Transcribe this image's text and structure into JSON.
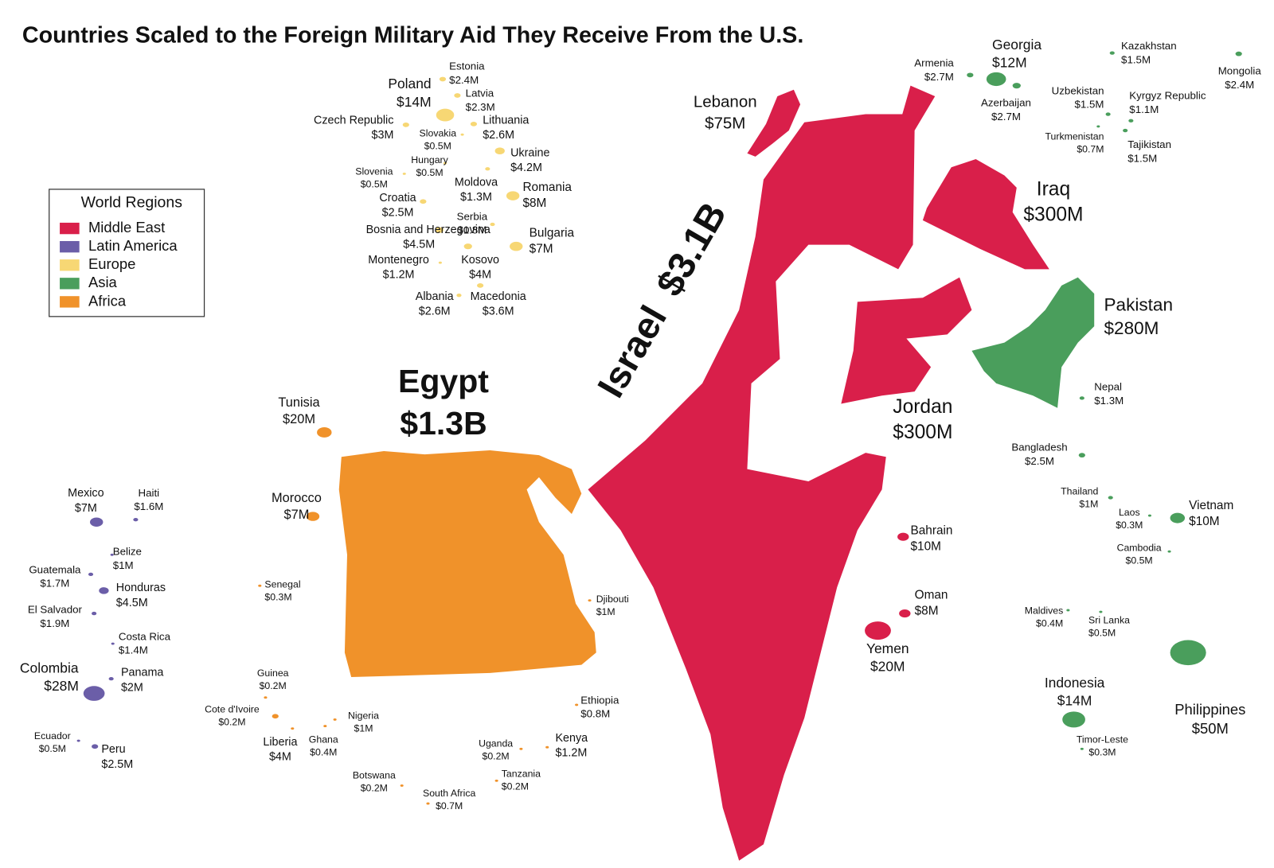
{
  "title": "Countries Scaled to the Foreign Military Aid They Receive From the U.S.",
  "legend": {
    "title": "World Regions",
    "items": [
      {
        "name": "Middle East",
        "color": "#d91f4a"
      },
      {
        "name": "Latin America",
        "color": "#6b5ea8"
      },
      {
        "name": "Europe",
        "color": "#f7d774"
      },
      {
        "name": "Asia",
        "color": "#4a9e5c"
      },
      {
        "name": "Africa",
        "color": "#f0922a"
      }
    ]
  },
  "countries": [
    {
      "name": "Israel",
      "aid": "$3.1B",
      "region": "Middle East"
    },
    {
      "name": "Egypt",
      "aid": "$1.3B",
      "region": "Africa"
    },
    {
      "name": "Lebanon",
      "aid": "$75M",
      "region": "Middle East"
    },
    {
      "name": "Iraq",
      "aid": "$300M",
      "region": "Middle East"
    },
    {
      "name": "Jordan",
      "aid": "$300M",
      "region": "Middle East"
    },
    {
      "name": "Pakistan",
      "aid": "$280M",
      "region": "Asia"
    },
    {
      "name": "Bahrain",
      "aid": "$10M",
      "region": "Middle East"
    },
    {
      "name": "Oman",
      "aid": "$8M",
      "region": "Middle East"
    },
    {
      "name": "Yemen",
      "aid": "$20M",
      "region": "Middle East"
    },
    {
      "name": "Armenia",
      "aid": "$2.7M",
      "region": "Asia"
    },
    {
      "name": "Georgia",
      "aid": "$12M",
      "region": "Asia"
    },
    {
      "name": "Azerbaijan",
      "aid": "$2.7M",
      "region": "Asia"
    },
    {
      "name": "Kazakhstan",
      "aid": "$1.5M",
      "region": "Asia"
    },
    {
      "name": "Mongolia",
      "aid": "$2.4M",
      "region": "Asia"
    },
    {
      "name": "Uzbekistan",
      "aid": "$1.5M",
      "region": "Asia"
    },
    {
      "name": "Kyrgyz Republic",
      "aid": "$1.1M",
      "region": "Asia"
    },
    {
      "name": "Turkmenistan",
      "aid": "$0.7M",
      "region": "Asia"
    },
    {
      "name": "Tajikistan",
      "aid": "$1.5M",
      "region": "Asia"
    },
    {
      "name": "Nepal",
      "aid": "$1.3M",
      "region": "Asia"
    },
    {
      "name": "Bangladesh",
      "aid": "$2.5M",
      "region": "Asia"
    },
    {
      "name": "Thailand",
      "aid": "$1M",
      "region": "Asia"
    },
    {
      "name": "Laos",
      "aid": "$0.3M",
      "region": "Asia"
    },
    {
      "name": "Vietnam",
      "aid": "$10M",
      "region": "Asia"
    },
    {
      "name": "Cambodia",
      "aid": "$0.5M",
      "region": "Asia"
    },
    {
      "name": "Maldives",
      "aid": "$0.4M",
      "region": "Asia"
    },
    {
      "name": "Sri Lanka",
      "aid": "$0.5M",
      "region": "Asia"
    },
    {
      "name": "Philippines",
      "aid": "$50M",
      "region": "Asia"
    },
    {
      "name": "Indonesia",
      "aid": "$14M",
      "region": "Asia"
    },
    {
      "name": "Timor-Leste",
      "aid": "$0.3M",
      "region": "Asia"
    },
    {
      "name": "Estonia",
      "aid": "$2.4M",
      "region": "Europe"
    },
    {
      "name": "Poland",
      "aid": "$14M",
      "region": "Europe"
    },
    {
      "name": "Latvia",
      "aid": "$2.3M",
      "region": "Europe"
    },
    {
      "name": "Czech Republic",
      "aid": "$3M",
      "region": "Europe"
    },
    {
      "name": "Lithuania",
      "aid": "$2.6M",
      "region": "Europe"
    },
    {
      "name": "Slovakia",
      "aid": "$0.5M",
      "region": "Europe"
    },
    {
      "name": "Ukraine",
      "aid": "$4.2M",
      "region": "Europe"
    },
    {
      "name": "Hungary",
      "aid": "$0.5M",
      "region": "Europe"
    },
    {
      "name": "Slovenia",
      "aid": "$0.5M",
      "region": "Europe"
    },
    {
      "name": "Moldova",
      "aid": "$1.3M",
      "region": "Europe"
    },
    {
      "name": "Romania",
      "aid": "$8M",
      "region": "Europe"
    },
    {
      "name": "Croatia",
      "aid": "$2.5M",
      "region": "Europe"
    },
    {
      "name": "Serbia",
      "aid": "$1.8M",
      "region": "Europe"
    },
    {
      "name": "Bosnia and Herzegovina",
      "aid": "$4.5M",
      "region": "Europe"
    },
    {
      "name": "Bulgaria",
      "aid": "$7M",
      "region": "Europe"
    },
    {
      "name": "Montenegro",
      "aid": "$1.2M",
      "region": "Europe"
    },
    {
      "name": "Kosovo",
      "aid": "$4M",
      "region": "Europe"
    },
    {
      "name": "Albania",
      "aid": "$2.6M",
      "region": "Europe"
    },
    {
      "name": "Macedonia",
      "aid": "$3.6M",
      "region": "Europe"
    },
    {
      "name": "Tunisia",
      "aid": "$20M",
      "region": "Africa"
    },
    {
      "name": "Morocco",
      "aid": "$7M",
      "region": "Africa"
    },
    {
      "name": "Senegal",
      "aid": "$0.3M",
      "region": "Africa"
    },
    {
      "name": "Djibouti",
      "aid": "$1M",
      "region": "Africa"
    },
    {
      "name": "Guinea",
      "aid": "$0.2M",
      "region": "Africa"
    },
    {
      "name": "Cote d'Ivoire",
      "aid": "$0.2M",
      "region": "Africa"
    },
    {
      "name": "Nigeria",
      "aid": "$1M",
      "region": "Africa"
    },
    {
      "name": "Liberia",
      "aid": "$4M",
      "region": "Africa"
    },
    {
      "name": "Ghana",
      "aid": "$0.4M",
      "region": "Africa"
    },
    {
      "name": "Ethiopia",
      "aid": "$0.8M",
      "region": "Africa"
    },
    {
      "name": "Kenya",
      "aid": "$1.2M",
      "region": "Africa"
    },
    {
      "name": "Uganda",
      "aid": "$0.2M",
      "region": "Africa"
    },
    {
      "name": "Tanzania",
      "aid": "$0.2M",
      "region": "Africa"
    },
    {
      "name": "Botswana",
      "aid": "$0.2M",
      "region": "Africa"
    },
    {
      "name": "South Africa",
      "aid": "$0.7M",
      "region": "Africa"
    },
    {
      "name": "Mexico",
      "aid": "$7M",
      "region": "Latin America"
    },
    {
      "name": "Haiti",
      "aid": "$1.6M",
      "region": "Latin America"
    },
    {
      "name": "Belize",
      "aid": "$1M",
      "region": "Latin America"
    },
    {
      "name": "Guatemala",
      "aid": "$1.7M",
      "region": "Latin America"
    },
    {
      "name": "Honduras",
      "aid": "$4.5M",
      "region": "Latin America"
    },
    {
      "name": "El Salvador",
      "aid": "$1.9M",
      "region": "Latin America"
    },
    {
      "name": "Costa Rica",
      "aid": "$1.4M",
      "region": "Latin America"
    },
    {
      "name": "Colombia",
      "aid": "$28M",
      "region": "Latin America"
    },
    {
      "name": "Panama",
      "aid": "$2M",
      "region": "Latin America"
    },
    {
      "name": "Ecuador",
      "aid": "$0.5M",
      "region": "Latin America"
    },
    {
      "name": "Peru",
      "aid": "$2.5M",
      "region": "Latin America"
    }
  ]
}
